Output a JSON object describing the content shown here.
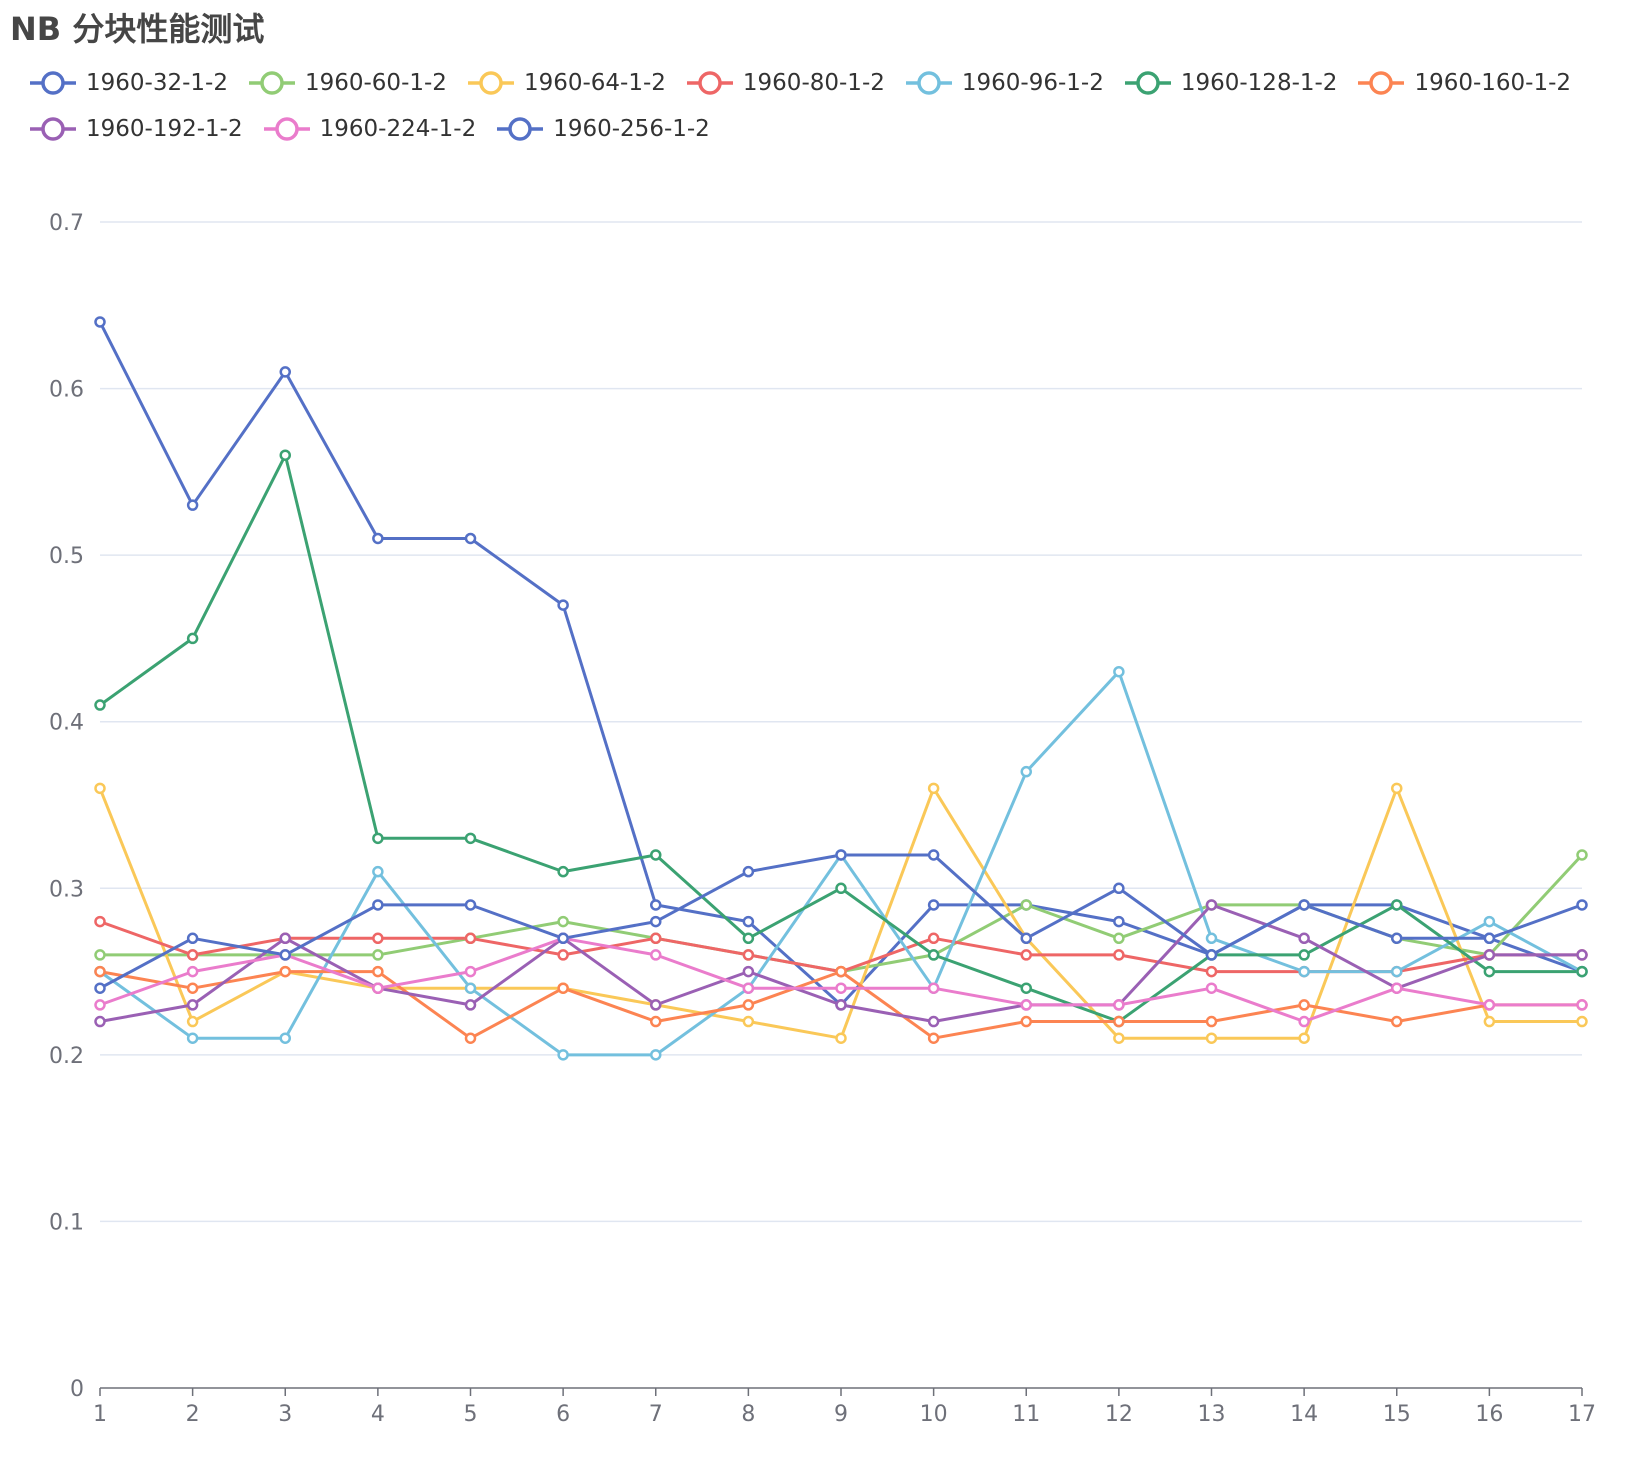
{
  "chart_data": {
    "type": "line",
    "title": "NB 分块性能测试",
    "xlabel": "",
    "ylabel": "",
    "categories": [
      "1",
      "2",
      "3",
      "4",
      "5",
      "6",
      "7",
      "8",
      "9",
      "10",
      "11",
      "12",
      "13",
      "14",
      "15",
      "16",
      "17"
    ],
    "ylim": [
      0,
      0.7
    ],
    "yticks": [
      "0",
      "0.1",
      "0.2",
      "0.3",
      "0.4",
      "0.5",
      "0.6",
      "0.7"
    ],
    "grid": true,
    "legend_position": "top",
    "series": [
      {
        "name": "1960-32-1-2",
        "color": "#5470c6",
        "values": [
          0.64,
          0.53,
          0.61,
          0.51,
          0.51,
          0.47,
          0.29,
          0.28,
          0.23,
          0.29,
          0.29,
          0.28,
          0.26,
          0.29,
          0.29,
          0.27,
          0.25
        ]
      },
      {
        "name": "1960-60-1-2",
        "color": "#91cc75",
        "values": [
          0.26,
          0.26,
          0.26,
          0.26,
          0.27,
          0.28,
          0.27,
          0.26,
          0.25,
          0.26,
          0.29,
          0.27,
          0.29,
          0.29,
          0.27,
          0.26,
          0.32
        ]
      },
      {
        "name": "1960-64-1-2",
        "color": "#fac858",
        "values": [
          0.36,
          0.22,
          0.25,
          0.24,
          0.24,
          0.24,
          0.23,
          0.22,
          0.21,
          0.36,
          0.27,
          0.21,
          0.21,
          0.21,
          0.36,
          0.22,
          0.22
        ]
      },
      {
        "name": "1960-80-1-2",
        "color": "#ee6666",
        "values": [
          0.28,
          0.26,
          0.27,
          0.27,
          0.27,
          0.26,
          0.27,
          0.26,
          0.25,
          0.27,
          0.26,
          0.26,
          0.25,
          0.25,
          0.25,
          0.26,
          0.26
        ]
      },
      {
        "name": "1960-96-1-2",
        "color": "#73c0de",
        "values": [
          0.25,
          0.21,
          0.21,
          0.31,
          0.24,
          0.2,
          0.2,
          0.24,
          0.32,
          0.24,
          0.37,
          0.43,
          0.27,
          0.25,
          0.25,
          0.28,
          0.25
        ]
      },
      {
        "name": "1960-128-1-2",
        "color": "#3ba272",
        "values": [
          0.41,
          0.45,
          0.56,
          0.33,
          0.33,
          0.31,
          0.32,
          0.27,
          0.3,
          0.26,
          0.24,
          0.22,
          0.26,
          0.26,
          0.29,
          0.25,
          0.25
        ]
      },
      {
        "name": "1960-160-1-2",
        "color": "#fc8452",
        "values": [
          0.25,
          0.24,
          0.25,
          0.25,
          0.21,
          0.24,
          0.22,
          0.23,
          0.25,
          0.21,
          0.22,
          0.22,
          0.22,
          0.23,
          0.22,
          0.23,
          0.23
        ]
      },
      {
        "name": "1960-192-1-2",
        "color": "#9a60b4",
        "values": [
          0.22,
          0.23,
          0.27,
          0.24,
          0.23,
          0.27,
          0.23,
          0.25,
          0.23,
          0.22,
          0.23,
          0.23,
          0.29,
          0.27,
          0.24,
          0.26,
          0.26
        ]
      },
      {
        "name": "1960-224-1-2",
        "color": "#ea7ccc",
        "values": [
          0.23,
          0.25,
          0.26,
          0.24,
          0.25,
          0.27,
          0.26,
          0.24,
          0.24,
          0.24,
          0.23,
          0.23,
          0.24,
          0.22,
          0.24,
          0.23,
          0.23
        ]
      },
      {
        "name": "1960-256-1-2",
        "color": "#5470c6",
        "values": [
          0.24,
          0.27,
          0.26,
          0.29,
          0.29,
          0.27,
          0.28,
          0.31,
          0.32,
          0.32,
          0.27,
          0.3,
          0.26,
          0.29,
          0.27,
          0.27,
          0.29
        ]
      }
    ]
  }
}
